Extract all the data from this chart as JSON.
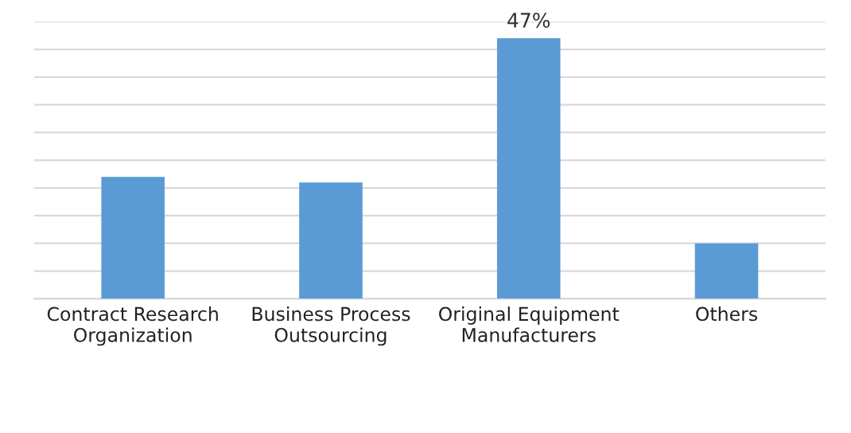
{
  "chart_data": {
    "type": "bar",
    "categories": [
      "Contract Research\nOrganization",
      "Business Process\nOutsourcing",
      "Original Equipment\nManufacturers",
      "Others"
    ],
    "values": [
      22,
      21,
      47,
      10
    ],
    "value_labels": [
      null,
      null,
      "47%",
      null
    ],
    "color": "#5b9bd5",
    "ylim": [
      0,
      50
    ],
    "yticks": [
      {
        "value": 0,
        "label": null
      },
      {
        "value": 5,
        "label": null
      },
      {
        "value": 10,
        "label": null
      },
      {
        "value": 15,
        "label": null
      },
      {
        "value": 20,
        "label": null
      },
      {
        "value": 25,
        "label": null
      },
      {
        "value": 30,
        "label": null
      },
      {
        "value": 35,
        "label": null
      },
      {
        "value": 40,
        "label": null
      },
      {
        "value": 45,
        "label": null
      },
      {
        "value": 50,
        "label": null
      }
    ],
    "grid": "y",
    "tick_labels": "x"
  }
}
